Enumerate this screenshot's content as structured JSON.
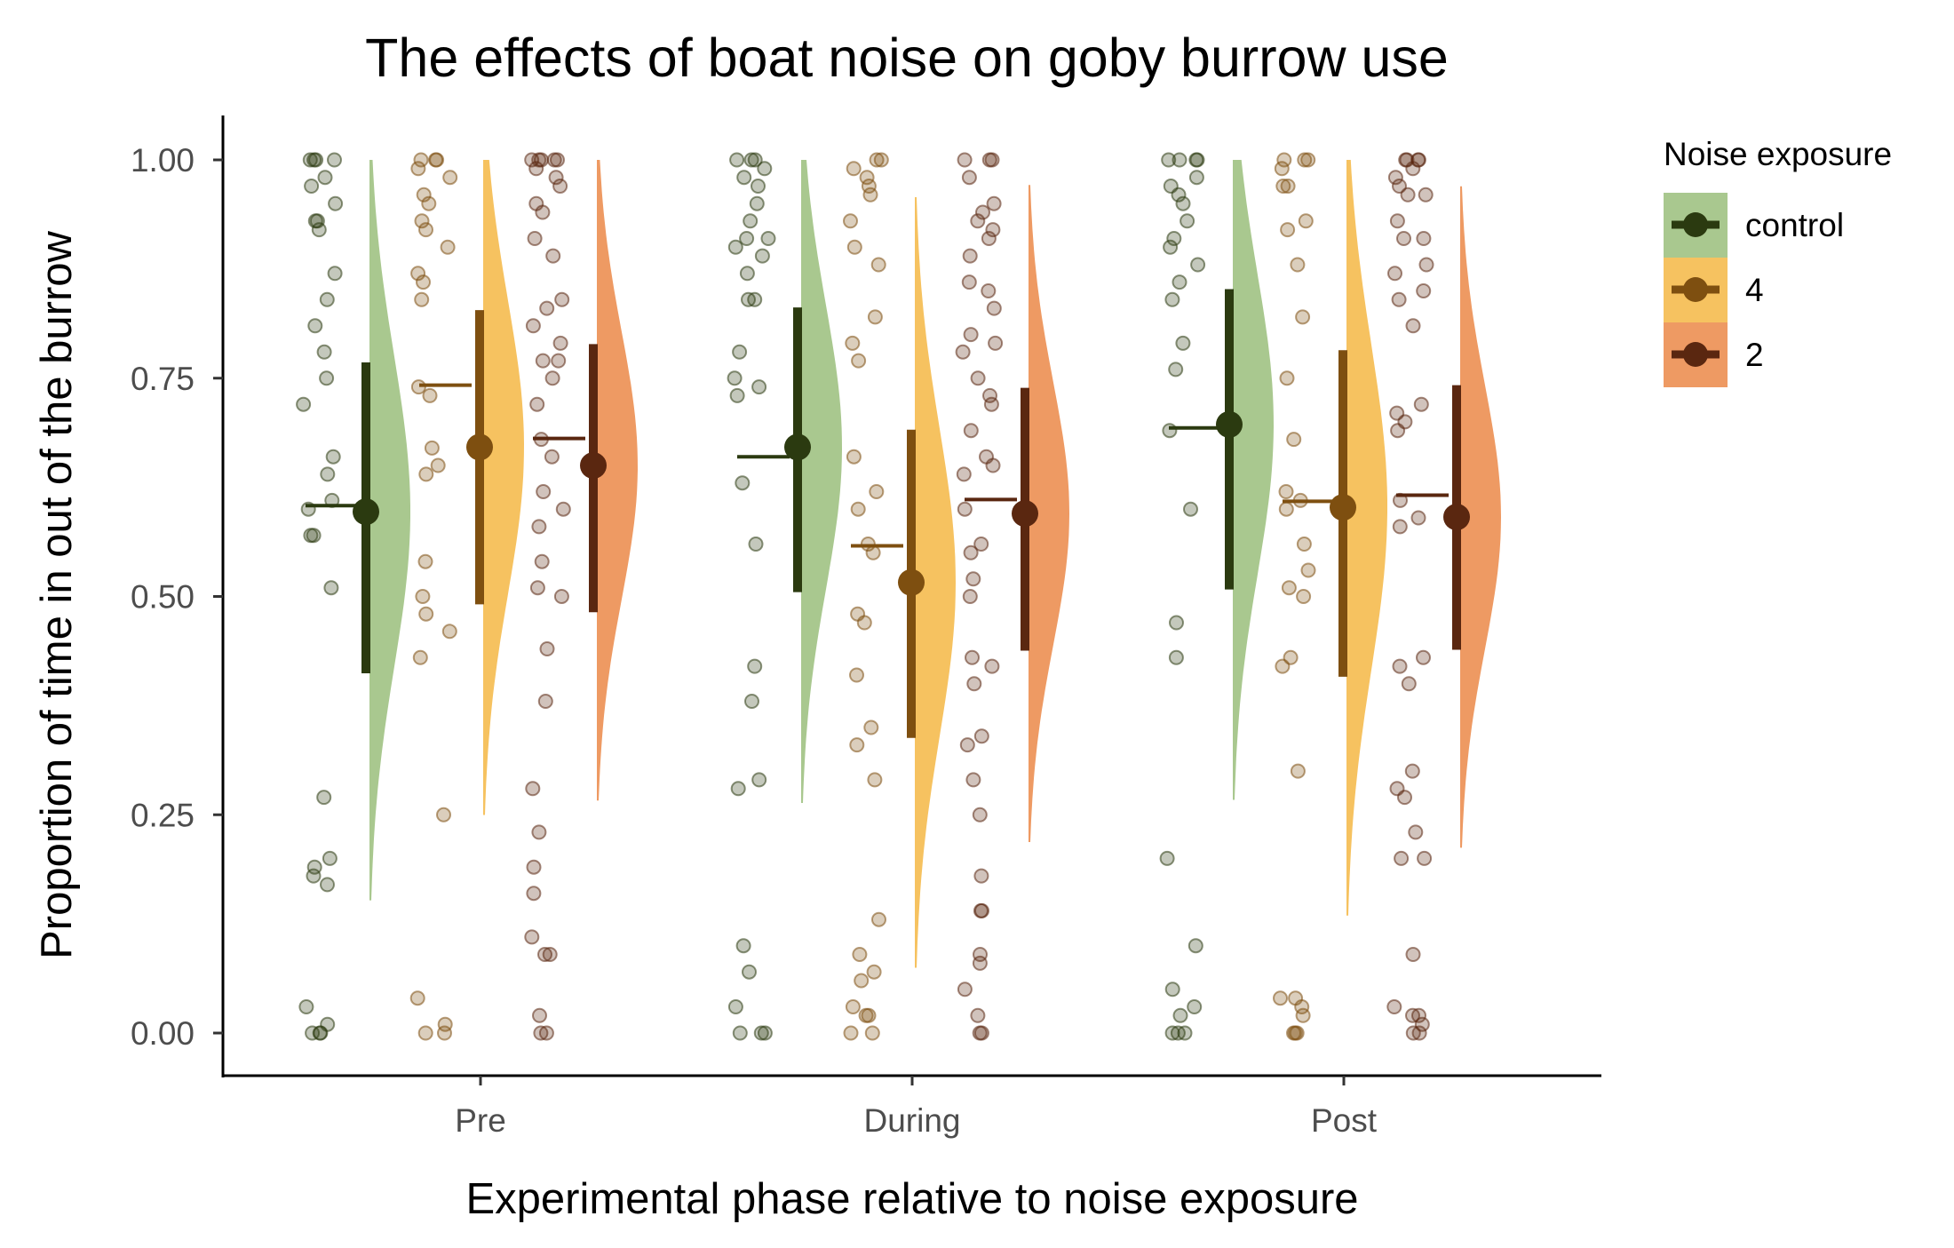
{
  "chart_data": {
    "type": "raincloud",
    "title": "The effects of boat noise on goby burrow use",
    "xlabel": "Experimental phase relative to noise exposure",
    "ylabel": "Proportion of time in out of the burrow",
    "categories": [
      "Pre",
      "During",
      "Post"
    ],
    "ylim": [
      -0.05,
      1.05
    ],
    "yticks": [
      0.0,
      0.25,
      0.5,
      0.75,
      1.0
    ],
    "ytick_labels": [
      "0.00",
      "0.25",
      "0.50",
      "0.75",
      "1.00"
    ],
    "grid": false,
    "legend": {
      "title": "Noise exposure",
      "placement": "right",
      "entries": [
        "control",
        "4",
        "2"
      ]
    },
    "colors": {
      "fill": [
        "#a9c88f",
        "#f6c260",
        "#ee9a63"
      ],
      "line": [
        "#2b3a10",
        "#7e4f10",
        "#5a2710"
      ]
    },
    "series": [
      {
        "name": "control",
        "summary": [
          {
            "phase": "Pre",
            "mean": 0.597,
            "ci": [
              0.412,
              0.768
            ],
            "median": 0.604
          },
          {
            "phase": "During",
            "mean": 0.671,
            "ci": [
              0.505,
              0.831
            ],
            "median": 0.66
          },
          {
            "phase": "Post",
            "mean": 0.697,
            "ci": [
              0.508,
              0.852
            ],
            "median": 0.693
          }
        ],
        "points": [
          [
            1.0,
            1.0,
            1.0,
            1.0,
            0.98,
            0.97,
            0.95,
            0.93,
            0.93,
            0.92,
            0.87,
            0.84,
            0.81,
            0.78,
            0.75,
            0.72,
            0.66,
            0.64,
            0.61,
            0.6,
            0.57,
            0.57,
            0.51,
            0.27,
            0.2,
            0.19,
            0.18,
            0.17,
            0.03,
            0.01,
            0.0,
            0.0,
            0.0
          ],
          [
            1.0,
            1.0,
            1.0,
            0.99,
            0.98,
            0.97,
            0.95,
            0.93,
            0.91,
            0.91,
            0.9,
            0.89,
            0.87,
            0.84,
            0.84,
            0.78,
            0.75,
            0.74,
            0.73,
            0.63,
            0.56,
            0.42,
            0.38,
            0.29,
            0.28,
            0.1,
            0.07,
            0.03,
            0.0,
            0.0,
            0.0
          ],
          [
            1.0,
            1.0,
            1.0,
            1.0,
            0.98,
            0.97,
            0.96,
            0.95,
            0.93,
            0.91,
            0.9,
            0.88,
            0.86,
            0.84,
            0.79,
            0.76,
            0.69,
            0.6,
            0.47,
            0.43,
            0.2,
            0.1,
            0.05,
            0.03,
            0.02,
            0.0,
            0.0,
            0.0
          ]
        ]
      },
      {
        "name": "4",
        "summary": [
          {
            "phase": "Pre",
            "mean": 0.671,
            "ci": [
              0.491,
              0.828
            ],
            "median": 0.742
          },
          {
            "phase": "During",
            "mean": 0.516,
            "ci": [
              0.338,
              0.691
            ],
            "median": 0.558
          },
          {
            "phase": "Post",
            "mean": 0.602,
            "ci": [
              0.408,
              0.782
            ],
            "median": 0.609
          }
        ],
        "points": [
          [
            1.0,
            1.0,
            1.0,
            0.99,
            0.98,
            0.96,
            0.95,
            0.93,
            0.92,
            0.9,
            0.87,
            0.86,
            0.84,
            0.74,
            0.73,
            0.67,
            0.65,
            0.64,
            0.54,
            0.5,
            0.48,
            0.46,
            0.43,
            0.25,
            0.04,
            0.01,
            0.0,
            0.0
          ],
          [
            1.0,
            1.0,
            0.99,
            0.98,
            0.97,
            0.96,
            0.93,
            0.9,
            0.88,
            0.82,
            0.79,
            0.77,
            0.66,
            0.62,
            0.6,
            0.56,
            0.55,
            0.48,
            0.47,
            0.41,
            0.35,
            0.33,
            0.29,
            0.13,
            0.09,
            0.07,
            0.06,
            0.03,
            0.02,
            0.02,
            0.0,
            0.0
          ],
          [
            1.0,
            1.0,
            1.0,
            0.99,
            0.97,
            0.97,
            0.93,
            0.92,
            0.88,
            0.82,
            0.75,
            0.68,
            0.62,
            0.61,
            0.6,
            0.56,
            0.53,
            0.51,
            0.5,
            0.43,
            0.42,
            0.3,
            0.04,
            0.04,
            0.03,
            0.02,
            0.0,
            0.0,
            0.0
          ]
        ]
      },
      {
        "name": "2",
        "summary": [
          {
            "phase": "Pre",
            "mean": 0.65,
            "ci": [
              0.482,
              0.789
            ],
            "median": 0.681
          },
          {
            "phase": "During",
            "mean": 0.595,
            "ci": [
              0.438,
              0.739
            ],
            "median": 0.611
          },
          {
            "phase": "Post",
            "mean": 0.591,
            "ci": [
              0.439,
              0.742
            ],
            "median": 0.616
          }
        ],
        "points": [
          [
            1.0,
            1.0,
            1.0,
            1.0,
            1.0,
            0.99,
            0.98,
            0.97,
            0.95,
            0.94,
            0.91,
            0.89,
            0.84,
            0.83,
            0.81,
            0.79,
            0.77,
            0.77,
            0.75,
            0.72,
            0.68,
            0.66,
            0.62,
            0.6,
            0.58,
            0.54,
            0.51,
            0.5,
            0.44,
            0.38,
            0.28,
            0.23,
            0.19,
            0.16,
            0.11,
            0.09,
            0.09,
            0.02,
            0.0,
            0.0
          ],
          [
            1.0,
            1.0,
            1.0,
            0.98,
            0.95,
            0.94,
            0.93,
            0.92,
            0.91,
            0.89,
            0.86,
            0.85,
            0.83,
            0.8,
            0.79,
            0.78,
            0.75,
            0.73,
            0.72,
            0.69,
            0.66,
            0.65,
            0.64,
            0.6,
            0.56,
            0.55,
            0.52,
            0.5,
            0.43,
            0.42,
            0.4,
            0.34,
            0.33,
            0.29,
            0.25,
            0.18,
            0.14,
            0.14,
            0.09,
            0.08,
            0.05,
            0.02,
            0.0,
            0.0
          ],
          [
            1.0,
            1.0,
            1.0,
            1.0,
            0.99,
            0.98,
            0.97,
            0.96,
            0.96,
            0.93,
            0.91,
            0.91,
            0.88,
            0.87,
            0.85,
            0.84,
            0.81,
            0.72,
            0.71,
            0.7,
            0.69,
            0.61,
            0.59,
            0.58,
            0.43,
            0.42,
            0.4,
            0.3,
            0.28,
            0.27,
            0.23,
            0.2,
            0.2,
            0.09,
            0.03,
            0.02,
            0.02,
            0.01,
            0.0,
            0.0
          ]
        ]
      }
    ]
  }
}
